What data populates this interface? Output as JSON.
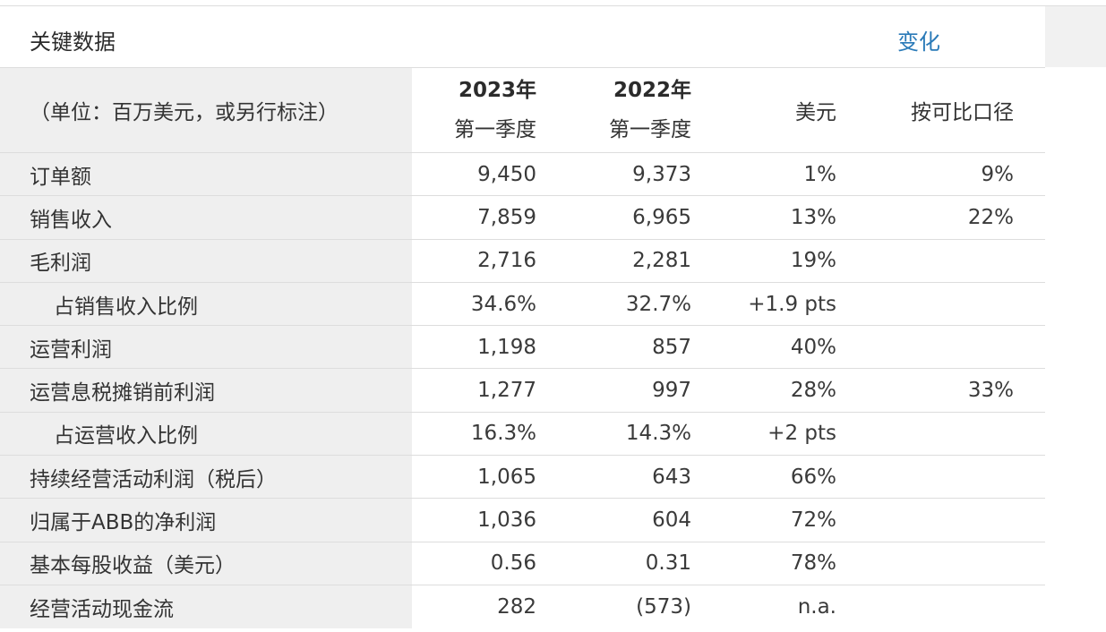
{
  "header": {
    "title": "关键数据",
    "change_label": "变化"
  },
  "columns": {
    "unit_note": "（单位：百万美元，或另行标注）",
    "q2023_year": "2023年",
    "q2023_quarter": "第一季度",
    "q2022_year": "2022年",
    "q2022_quarter": "第一季度",
    "usd": "美元",
    "comparable": "按可比口径"
  },
  "rows": [
    {
      "label": "订单额",
      "v2023": "9,450",
      "v2022": "9,373",
      "usd": "1%",
      "comp": "9%"
    },
    {
      "label": "销售收入",
      "v2023": "7,859",
      "v2022": "6,965",
      "usd": "13%",
      "comp": "22%"
    },
    {
      "label": "毛利润",
      "v2023": "2,716",
      "v2022": "2,281",
      "usd": "19%",
      "comp": ""
    },
    {
      "label": "占销售收入比例",
      "v2023": "34.6%",
      "v2022": "32.7%",
      "usd": "+1.9 pts",
      "comp": ""
    },
    {
      "label": "运营利润",
      "v2023": "1,198",
      "v2022": "857",
      "usd": "40%",
      "comp": ""
    },
    {
      "label": "运营息税摊销前利润",
      "v2023": "1,277",
      "v2022": "997",
      "usd": "28%",
      "comp": "33%"
    },
    {
      "label": "占运营收入比例",
      "v2023": "16.3%",
      "v2022": "14.3%",
      "usd": "+2 pts",
      "comp": ""
    },
    {
      "label": "持续经营活动利润（税后）",
      "v2023": "1,065",
      "v2022": "643",
      "usd": "66%",
      "comp": ""
    },
    {
      "label": "归属于ABB的净利润",
      "v2023": "1,036",
      "v2022": "604",
      "usd": "72%",
      "comp": ""
    },
    {
      "label": "基本每股收益（美元）",
      "v2023": "0.56",
      "v2022": "0.31",
      "usd": "78%",
      "comp": ""
    },
    {
      "label": "经营活动现金流",
      "v2023": "282",
      "v2022": "(573)",
      "usd": "n.a.",
      "comp": ""
    }
  ]
}
